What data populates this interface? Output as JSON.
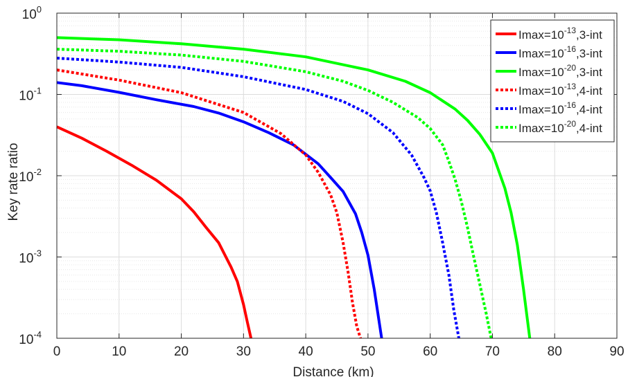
{
  "chart_data": {
    "type": "line",
    "title": "",
    "xlabel": "Distance (km)",
    "ylabel": "Key rate ratio",
    "xlim": [
      0,
      90
    ],
    "ylim": [
      0.0001,
      1
    ],
    "yscale": "log",
    "grid": true,
    "legend_position": "top-right",
    "x_ticks": [
      "0",
      "10",
      "20",
      "30",
      "40",
      "50",
      "60",
      "70",
      "80",
      "90"
    ],
    "y_ticks": [
      {
        "base": "10",
        "exp": "-4"
      },
      {
        "base": "10",
        "exp": "-3"
      },
      {
        "base": "10",
        "exp": "-2"
      },
      {
        "base": "10",
        "exp": "-1"
      },
      {
        "base": "10",
        "exp": "0"
      }
    ],
    "series": [
      {
        "name": {
          "prefix": "Imax=10",
          "exp": "-13",
          "suffix": ",3-int"
        },
        "color": "#ff0000",
        "style": "solid",
        "x": [
          0,
          4,
          8,
          12,
          16,
          20,
          22,
          24,
          26,
          28,
          29,
          30,
          30.6,
          31.2
        ],
        "y": [
          0.04,
          0.029,
          0.02,
          0.0135,
          0.0088,
          0.0052,
          0.0036,
          0.0023,
          0.0015,
          0.00075,
          0.0005,
          0.00026,
          0.00016,
          0.0001
        ]
      },
      {
        "name": {
          "prefix": "Imax=10",
          "exp": "-16",
          "suffix": ",3-int"
        },
        "color": "#0000ff",
        "style": "solid",
        "x": [
          0,
          4,
          10,
          16,
          22,
          26,
          30,
          34,
          38,
          42,
          44,
          46,
          48,
          49,
          50,
          51,
          52.2
        ],
        "y": [
          0.14,
          0.128,
          0.106,
          0.086,
          0.071,
          0.059,
          0.046,
          0.034,
          0.024,
          0.014,
          0.0095,
          0.0064,
          0.0034,
          0.002,
          0.00105,
          0.0004,
          0.0001
        ]
      },
      {
        "name": {
          "prefix": "Imax=10",
          "exp": "-20",
          "suffix": ",3-int"
        },
        "color": "#00ff00",
        "style": "solid",
        "x": [
          0,
          10,
          20,
          30,
          40,
          50,
          56,
          60,
          64,
          66,
          68,
          70,
          72,
          73,
          74,
          75,
          76
        ],
        "y": [
          0.5,
          0.47,
          0.42,
          0.36,
          0.29,
          0.2,
          0.145,
          0.105,
          0.066,
          0.048,
          0.032,
          0.019,
          0.007,
          0.0035,
          0.0014,
          0.0004,
          0.0001
        ]
      },
      {
        "name": {
          "prefix": "Imax=10",
          "exp": "-13",
          "suffix": ",4-int"
        },
        "color": "#ff0000",
        "style": "dotted",
        "x": [
          0,
          10,
          20,
          30,
          36,
          40,
          42,
          44,
          45,
          46,
          46.8,
          47.5,
          48.2,
          48.8
        ],
        "y": [
          0.2,
          0.15,
          0.105,
          0.06,
          0.033,
          0.018,
          0.011,
          0.0058,
          0.0035,
          0.0015,
          0.00065,
          0.00028,
          0.00014,
          0.0001
        ]
      },
      {
        "name": {
          "prefix": "Imax=10",
          "exp": "-16",
          "suffix": ",4-int"
        },
        "color": "#0000ff",
        "style": "dotted",
        "x": [
          0,
          10,
          20,
          30,
          40,
          46,
          50,
          54,
          57,
          59,
          60,
          61,
          62,
          63,
          63.8,
          64.6
        ],
        "y": [
          0.28,
          0.25,
          0.215,
          0.165,
          0.115,
          0.082,
          0.058,
          0.034,
          0.018,
          0.0095,
          0.0065,
          0.0035,
          0.0015,
          0.0006,
          0.00022,
          0.0001
        ]
      },
      {
        "name": {
          "prefix": "Imax=10",
          "exp": "-20",
          "suffix": ",4-int"
        },
        "color": "#00ff00",
        "style": "dotted",
        "x": [
          0,
          10,
          20,
          30,
          40,
          46,
          50,
          54,
          58,
          60,
          62,
          63,
          64,
          65,
          66,
          67,
          68,
          69,
          69.8
        ],
        "y": [
          0.36,
          0.34,
          0.305,
          0.255,
          0.19,
          0.145,
          0.112,
          0.08,
          0.052,
          0.038,
          0.024,
          0.015,
          0.009,
          0.0048,
          0.0023,
          0.001,
          0.00045,
          0.0002,
          0.0001
        ]
      }
    ]
  }
}
